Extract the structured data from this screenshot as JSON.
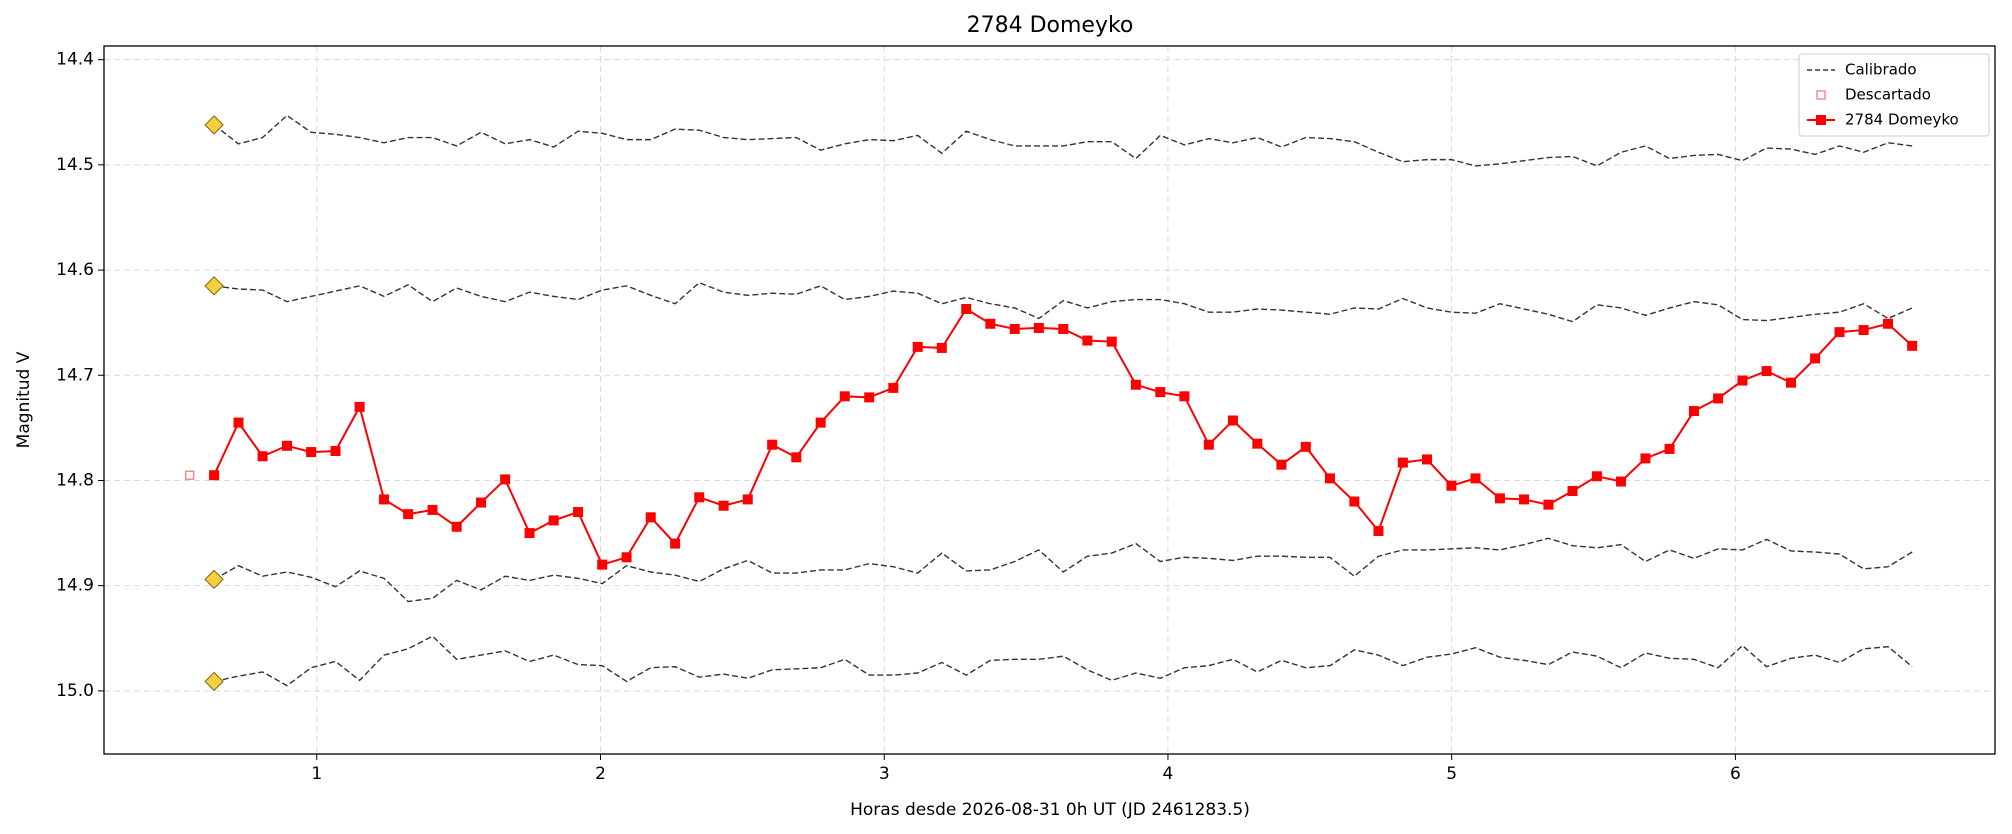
{
  "chart_data": {
    "type": "line",
    "title": "2784 Domeyko",
    "x_label": "Horas desde 2026-08-31 0h UT (JD 2461283.5)",
    "y_label": "Magnitud V",
    "xlim": [
      0.25,
      6.915
    ],
    "ylim": [
      15.06,
      14.387
    ],
    "xticks": [
      1,
      2,
      3,
      4,
      5,
      6
    ],
    "yticks": [
      14.4,
      14.5,
      14.6,
      14.7,
      14.8,
      14.9,
      {
        "value": 15,
        "label": "15.0"
      }
    ],
    "grid": true,
    "legend": "upper right",
    "x": [
      0.638,
      0.724,
      0.809,
      0.895,
      0.98,
      1.066,
      1.151,
      1.237,
      1.322,
      1.408,
      1.493,
      1.579,
      1.664,
      1.75,
      1.835,
      1.921,
      2.006,
      2.092,
      2.177,
      2.263,
      2.348,
      2.434,
      2.519,
      2.605,
      2.69,
      2.776,
      2.861,
      2.947,
      3.032,
      3.118,
      3.203,
      3.289,
      3.374,
      3.46,
      3.545,
      3.631,
      3.716,
      3.802,
      3.887,
      3.973,
      4.058,
      4.144,
      4.229,
      4.315,
      4.4,
      4.486,
      4.571,
      4.657,
      4.742,
      4.828,
      4.913,
      4.999,
      5.084,
      5.17,
      5.255,
      5.341,
      5.426,
      5.512,
      5.597,
      5.683,
      5.768,
      5.854,
      5.939,
      6.025,
      6.11,
      6.196,
      6.281,
      6.367,
      6.452,
      6.538,
      6.623
    ],
    "calibrated": {
      "name": "Calibrado",
      "color": "#333333",
      "lines": [
        [
          14.462,
          14.48,
          14.474,
          14.453,
          14.469,
          14.471,
          14.474,
          14.479,
          14.474,
          14.474,
          14.482,
          14.469,
          14.48,
          14.476,
          14.483,
          14.468,
          14.47,
          14.476,
          14.476,
          14.466,
          14.467,
          14.474,
          14.476,
          14.475,
          14.474,
          14.486,
          14.48,
          14.476,
          14.477,
          14.472,
          14.489,
          14.468,
          14.476,
          14.482,
          14.482,
          14.482,
          14.478,
          14.478,
          14.494,
          14.472,
          14.481,
          14.475,
          14.479,
          14.474,
          14.483,
          14.474,
          14.475,
          14.478,
          14.488,
          14.497,
          14.495,
          14.495,
          14.501,
          14.499,
          14.496,
          14.493,
          14.492,
          14.501,
          14.488,
          14.482,
          14.494,
          14.491,
          14.49,
          14.496,
          14.484,
          14.485,
          14.49,
          14.482,
          14.488,
          14.479,
          14.482
        ],
        [
          14.615,
          14.618,
          14.619,
          14.63,
          14.625,
          14.62,
          14.615,
          14.625,
          14.614,
          14.63,
          14.617,
          14.625,
          14.63,
          14.621,
          14.625,
          14.628,
          14.619,
          14.615,
          14.624,
          14.632,
          14.612,
          14.621,
          14.624,
          14.622,
          14.623,
          14.615,
          14.628,
          14.625,
          14.62,
          14.622,
          14.632,
          14.626,
          14.632,
          14.636,
          14.646,
          14.629,
          14.636,
          14.63,
          14.628,
          14.628,
          14.632,
          14.64,
          14.64,
          14.637,
          14.638,
          14.64,
          14.642,
          14.636,
          14.637,
          14.627,
          14.636,
          14.64,
          14.641,
          14.632,
          14.637,
          14.642,
          14.649,
          14.633,
          14.636,
          14.643,
          14.636,
          14.63,
          14.633,
          14.647,
          14.648,
          14.645,
          14.642,
          14.64,
          14.632,
          14.646,
          14.636
        ],
        [
          14.894,
          14.881,
          14.891,
          14.887,
          14.892,
          14.901,
          14.886,
          14.893,
          14.915,
          14.912,
          14.895,
          14.904,
          14.891,
          14.895,
          14.89,
          14.893,
          14.898,
          14.881,
          14.887,
          14.89,
          14.896,
          14.884,
          14.876,
          14.888,
          14.888,
          14.885,
          14.885,
          14.879,
          14.882,
          14.888,
          14.869,
          14.886,
          14.885,
          14.877,
          14.866,
          14.887,
          14.872,
          14.869,
          14.86,
          14.877,
          14.873,
          14.874,
          14.876,
          14.872,
          14.872,
          14.873,
          14.873,
          14.891,
          14.872,
          14.866,
          14.866,
          14.865,
          14.864,
          14.866,
          14.861,
          14.855,
          14.862,
          14.864,
          14.861,
          14.877,
          14.866,
          14.874,
          14.865,
          14.866,
          14.856,
          14.867,
          14.868,
          14.87,
          14.884,
          14.882,
          14.868
        ],
        [
          14.991,
          14.986,
          14.982,
          14.995,
          14.978,
          14.972,
          14.99,
          14.966,
          14.96,
          14.948,
          14.97,
          14.966,
          14.962,
          14.972,
          14.966,
          14.975,
          14.976,
          14.991,
          14.978,
          14.977,
          14.987,
          14.984,
          14.988,
          14.98,
          14.979,
          14.978,
          14.97,
          14.985,
          14.985,
          14.983,
          14.973,
          14.985,
          14.971,
          14.97,
          14.97,
          14.967,
          14.98,
          14.99,
          14.983,
          14.988,
          14.978,
          14.976,
          14.97,
          14.982,
          14.971,
          14.978,
          14.976,
          14.961,
          14.966,
          14.976,
          14.968,
          14.965,
          14.959,
          14.968,
          14.971,
          14.975,
          14.963,
          14.967,
          14.978,
          14.964,
          14.969,
          14.97,
          14.978,
          14.957,
          14.977,
          14.969,
          14.966,
          14.973,
          14.96,
          14.958,
          14.977
        ]
      ]
    },
    "comparison_markers": {
      "color": "#f4d03f",
      "x": [
        0.638,
        0.638,
        0.638,
        0.638
      ],
      "values": [
        14.462,
        14.615,
        14.894,
        14.991
      ]
    },
    "discarded": {
      "name": "Descartado",
      "color": "#f08080",
      "x": [
        0.552
      ],
      "values": [
        14.795
      ]
    },
    "series": [
      {
        "name": "2784 Domeyko",
        "color": "#ff0000",
        "values": [
          14.795,
          14.745,
          14.777,
          14.767,
          14.773,
          14.772,
          14.73,
          14.818,
          14.832,
          14.828,
          14.844,
          14.821,
          14.799,
          14.85,
          14.838,
          14.83,
          14.88,
          14.873,
          14.835,
          14.86,
          14.816,
          14.824,
          14.818,
          14.766,
          14.778,
          14.745,
          14.72,
          14.721,
          14.712,
          14.673,
          14.674,
          14.637,
          14.651,
          14.656,
          14.655,
          14.656,
          14.667,
          14.668,
          14.709,
          14.716,
          14.72,
          14.766,
          14.743,
          14.765,
          14.785,
          14.768,
          14.798,
          14.82,
          14.848,
          14.783,
          14.78,
          14.805,
          14.798,
          14.817,
          14.818,
          14.823,
          14.81,
          14.796,
          14.801,
          14.779,
          14.77,
          14.734,
          14.722,
          14.705,
          14.696,
          14.707,
          14.684,
          14.659,
          14.657,
          14.651,
          14.672
        ]
      }
    ]
  }
}
